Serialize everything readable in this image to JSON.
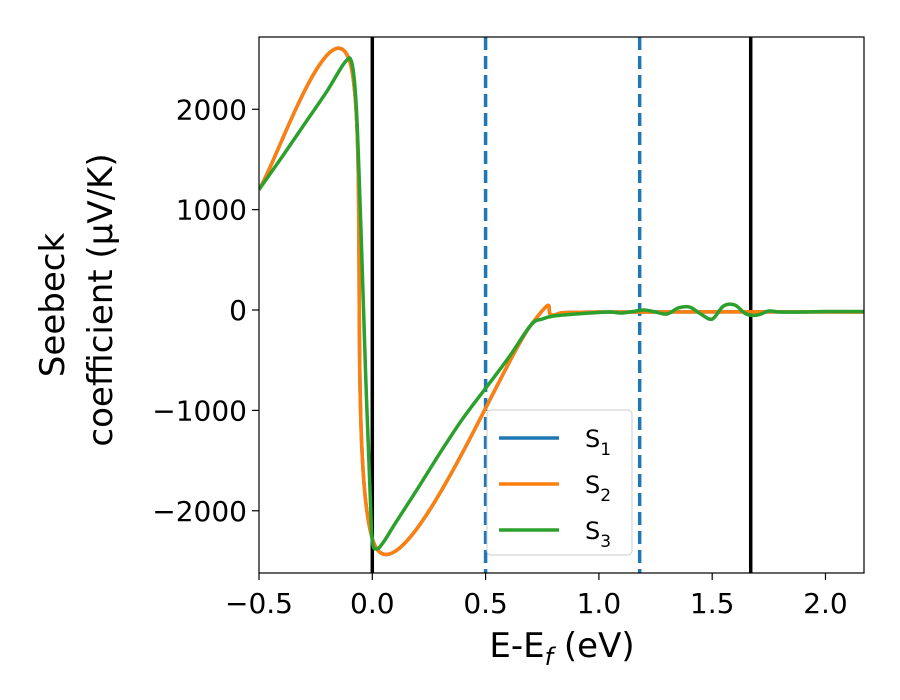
{
  "chart_data": {
    "type": "line",
    "xlabel": "E-E",
    "xlabel_sub": "f",
    "xlabel_unit": " (eV)",
    "ylabel_line1": "Seebeck",
    "ylabel_line2": "coefficient  (μV/K)",
    "xlim": [
      -0.5,
      2.17
    ],
    "ylim": [
      -2620,
      2720
    ],
    "x_ticks": [
      -0.5,
      0.0,
      0.5,
      1.0,
      1.5,
      2.0
    ],
    "x_tick_labels": [
      "−0.5",
      "0.0",
      "0.5",
      "1.0",
      "1.5",
      "2.0"
    ],
    "y_ticks": [
      -2000,
      -1000,
      0,
      1000,
      2000
    ],
    "y_tick_labels": [
      "−2000",
      "−1000",
      "0",
      "1000",
      "2000"
    ],
    "vlines": [
      {
        "x": 0.0,
        "style": "solid",
        "color": "#000000"
      },
      {
        "x": 0.5,
        "style": "dashed",
        "color": "#1f77b4"
      },
      {
        "x": 1.18,
        "style": "dashed",
        "color": "#1f77b4"
      },
      {
        "x": 1.67,
        "style": "solid",
        "color": "#000000"
      }
    ],
    "legend_position": "lower-center",
    "series": [
      {
        "name": "S",
        "sub": "1",
        "color": "#1f77b4",
        "x": [
          -0.5,
          -0.1,
          0.02,
          0.7,
          0.8,
          1.0,
          2.17
        ],
        "y": [
          1200,
          2480,
          -2380,
          -150,
          -50,
          -20,
          -20
        ]
      },
      {
        "name": "S",
        "sub": "2",
        "color": "#ff7f0e",
        "x": [
          -0.5,
          -0.1,
          0.02,
          0.7,
          0.8,
          1.0,
          2.17
        ],
        "y": [
          1200,
          2480,
          -2380,
          -150,
          -50,
          -20,
          -20
        ]
      },
      {
        "name": "S",
        "sub": "3",
        "color": "#2ca02c",
        "x": [
          -0.5,
          -0.4,
          -0.3,
          -0.2,
          -0.12,
          -0.09,
          -0.07,
          -0.05,
          -0.03,
          -0.01,
          0.0,
          0.02,
          0.05,
          0.1,
          0.2,
          0.3,
          0.4,
          0.5,
          0.6,
          0.7,
          0.75,
          0.8,
          0.9,
          1.0,
          1.05,
          1.1,
          1.15,
          1.2,
          1.25,
          1.3,
          1.35,
          1.4,
          1.45,
          1.5,
          1.55,
          1.6,
          1.65,
          1.7,
          1.75,
          1.8,
          1.9,
          2.0,
          2.17
        ],
        "y": [
          1200,
          1520,
          1850,
          2180,
          2470,
          2460,
          2000,
          800,
          -600,
          -1800,
          -2300,
          -2380,
          -2310,
          -2130,
          -1780,
          -1420,
          -1080,
          -780,
          -480,
          -150,
          -90,
          -60,
          -40,
          -25,
          -20,
          -30,
          -15,
          0,
          -20,
          -40,
          20,
          30,
          -40,
          -90,
          40,
          50,
          -40,
          -50,
          -10,
          -20,
          -20,
          -15,
          -15
        ]
      }
    ]
  }
}
